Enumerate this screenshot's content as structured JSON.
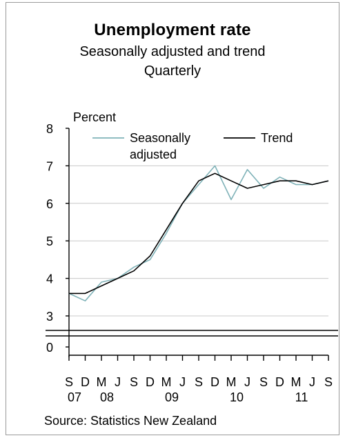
{
  "chart_data": {
    "type": "line",
    "title": "Unemployment rate",
    "subtitle": "Seasonally adjusted and trend",
    "frequency": "Quarterly",
    "ylabel": "Percent",
    "source": "Source: Statistics New Zealand",
    "ylim": [
      3,
      8
    ],
    "axis_break": true,
    "y_ticks": [
      "8",
      "7",
      "6",
      "5",
      "4",
      "3",
      "0"
    ],
    "x_quarters": [
      "S",
      "D",
      "M",
      "J",
      "S",
      "D",
      "M",
      "J",
      "S",
      "D",
      "M",
      "J",
      "S",
      "D",
      "M",
      "J",
      "S"
    ],
    "x_years": [
      {
        "label": "07",
        "index": 0
      },
      {
        "label": "08",
        "index": 2
      },
      {
        "label": "09",
        "index": 6
      },
      {
        "label": "10",
        "index": 10
      },
      {
        "label": "11",
        "index": 14
      }
    ],
    "grid": "horizontal",
    "legend_position": "top",
    "series": [
      {
        "name": "Seasonally adjusted",
        "legend_lines": [
          "Seasonally",
          "adjusted"
        ],
        "color": "#7fb2b8",
        "values": [
          3.6,
          3.4,
          3.9,
          4.0,
          4.3,
          4.5,
          5.2,
          6.0,
          6.5,
          7.0,
          6.1,
          6.9,
          6.4,
          6.7,
          6.5,
          6.5,
          6.6
        ]
      },
      {
        "name": "Trend",
        "legend_lines": [
          "Trend"
        ],
        "color": "#000000",
        "values": [
          3.6,
          3.6,
          3.8,
          4.0,
          4.2,
          4.6,
          5.3,
          6.0,
          6.6,
          6.8,
          6.6,
          6.4,
          6.5,
          6.6,
          6.6,
          6.5,
          6.6
        ]
      }
    ]
  }
}
